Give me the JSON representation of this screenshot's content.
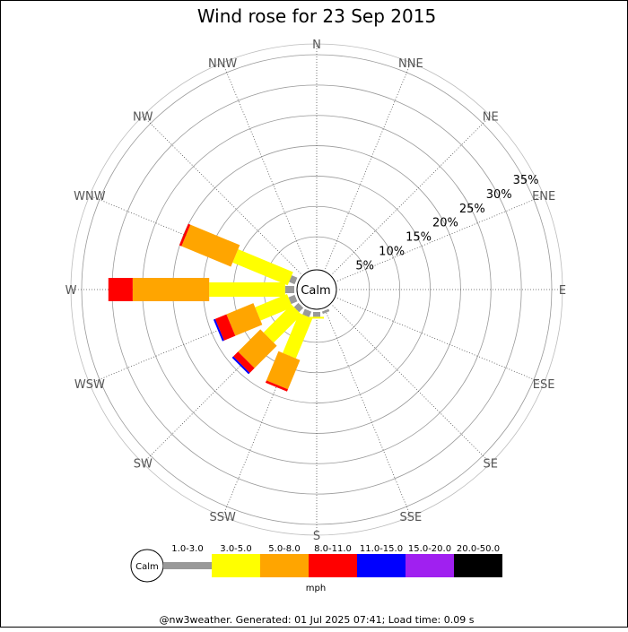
{
  "chart_data": {
    "type": "wind_rose",
    "title": "Wind rose for 23 Sep 2015",
    "directions": [
      "N",
      "NNE",
      "NE",
      "ENE",
      "E",
      "ESE",
      "SE",
      "SSE",
      "S",
      "SSW",
      "SW",
      "WSW",
      "W",
      "WNW",
      "NW",
      "NNW"
    ],
    "radial_ticks": [
      "5%",
      "10%",
      "15%",
      "20%",
      "25%",
      "30%",
      "35%"
    ],
    "radial_max": 35,
    "center_label": "Calm",
    "speed_bins": [
      {
        "label": "1.0-3.0",
        "color": "#999999"
      },
      {
        "label": "3.0-5.0",
        "color": "#ffff00"
      },
      {
        "label": "5.0-8.0",
        "color": "#ffa500"
      },
      {
        "label": "8.0-11.0",
        "color": "#ff0000"
      },
      {
        "label": "11.0-15.0",
        "color": "#0000ff"
      },
      {
        "label": "15.0-20.0",
        "color": "#a020f0"
      },
      {
        "label": "20.0-50.0",
        "color": "#000000"
      }
    ],
    "unit": "mph",
    "series": [
      {
        "direction": "SSE",
        "values": [
          0.4,
          0,
          0,
          0,
          0,
          0,
          0
        ]
      },
      {
        "direction": "S",
        "values": [
          0.8,
          0.3,
          0,
          0,
          0,
          0,
          0
        ]
      },
      {
        "direction": "SSW",
        "values": [
          1.0,
          7.1,
          5.2,
          0.4,
          0,
          0,
          0
        ]
      },
      {
        "direction": "SW",
        "values": [
          1.0,
          6.5,
          5.2,
          1.1,
          0.3,
          0,
          0
        ]
      },
      {
        "direction": "WSW",
        "values": [
          1.1,
          5.7,
          4.8,
          2.0,
          0.3,
          0,
          0
        ]
      },
      {
        "direction": "W",
        "values": [
          1.5,
          12.5,
          12.6,
          4.0,
          0,
          0,
          0
        ]
      },
      {
        "direction": "WNW",
        "values": [
          1.0,
          9.8,
          8.8,
          0.4,
          0,
          0,
          0
        ]
      }
    ]
  },
  "footer": "@nw3weather. Generated: 01 Jul 2025 07:41; Load time: 0.09 s"
}
